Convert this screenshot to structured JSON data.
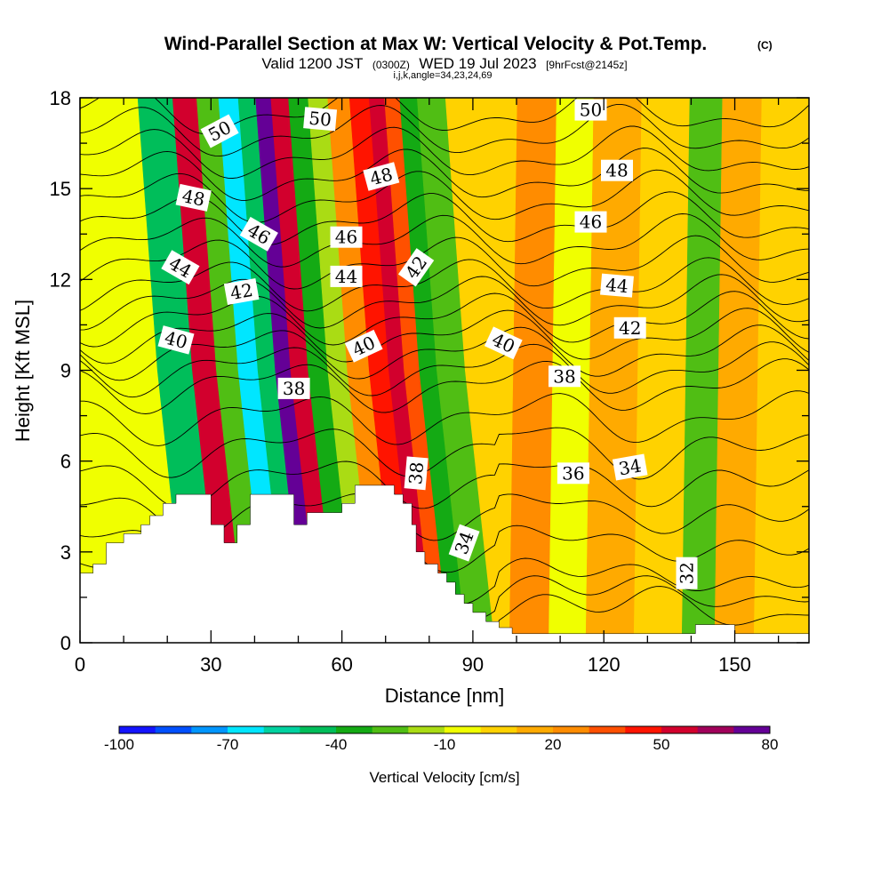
{
  "title": "Wind-Parallel Section at Max W: Vertical Velocity & Pot.Temp.",
  "copyright": "(C)",
  "subtitle": {
    "part1": "Valid 1200 JST",
    "part2": "(0300Z)",
    "part3": "WED 19 Jul 2023",
    "part4": "[9hrFcst@2145z]"
  },
  "info": "i,j,k,angle=34,23,24,69",
  "chart_data": {
    "type": "heatmap",
    "xlabel": "Distance [nm]",
    "ylabel": "Height [Kft MSL]",
    "xlim": [
      0,
      167
    ],
    "ylim": [
      0,
      18
    ],
    "x_ticks": [
      0,
      30,
      60,
      90,
      120,
      150
    ],
    "y_ticks": [
      0,
      3,
      6,
      9,
      12,
      15,
      18
    ],
    "colorbar": {
      "label": "Vertical Velocity [cm/s]",
      "tick_labels": [
        "-100",
        "-70",
        "-40",
        "-10",
        "20",
        "50",
        "80"
      ],
      "tick_values": [
        -100,
        -70,
        -40,
        -10,
        20,
        50,
        80
      ],
      "range": [
        -100,
        80
      ],
      "colors": [
        "#1414ff",
        "#0050ff",
        "#0096ff",
        "#00e6ff",
        "#00d2a0",
        "#00be5a",
        "#14aa14",
        "#50be14",
        "#aadc14",
        "#f0ff00",
        "#ffd200",
        "#ffaa00",
        "#ff8c00",
        "#ff5000",
        "#ff1400",
        "#d2002d",
        "#a0005a",
        "#640096"
      ]
    },
    "shading_bands": [
      {
        "x": 15,
        "w": -6
      },
      {
        "x": 25,
        "w": -45
      },
      {
        "x": 31,
        "w": 55
      },
      {
        "x": 36,
        "w": -30
      },
      {
        "x": 41,
        "w": -70
      },
      {
        "x": 45,
        "w": -50
      },
      {
        "x": 49,
        "w": 80
      },
      {
        "x": 52,
        "w": 50
      },
      {
        "x": 57,
        "w": -40
      },
      {
        "x": 61,
        "w": -20
      },
      {
        "x": 66,
        "w": 20
      },
      {
        "x": 71,
        "w": 40
      },
      {
        "x": 75,
        "w": 55
      },
      {
        "x": 78,
        "w": 30
      },
      {
        "x": 82,
        "w": -40
      },
      {
        "x": 86,
        "w": -30
      },
      {
        "x": 95,
        "w": 5
      },
      {
        "x": 103,
        "w": 25
      },
      {
        "x": 113,
        "w": -10
      },
      {
        "x": 120,
        "w": 10
      },
      {
        "x": 135,
        "w": 5
      },
      {
        "x": 142,
        "w": -25
      },
      {
        "x": 150,
        "w": 10
      },
      {
        "x": 160,
        "w": 0
      }
    ],
    "terrain": [
      [
        0,
        2.3
      ],
      [
        3,
        2.6
      ],
      [
        6,
        3.3
      ],
      [
        10,
        3.6
      ],
      [
        14,
        3.9
      ],
      [
        16,
        4.2
      ],
      [
        19,
        4.6
      ],
      [
        22,
        4.9
      ],
      [
        29,
        4.9
      ],
      [
        30,
        3.9
      ],
      [
        32,
        3.9
      ],
      [
        33,
        3.3
      ],
      [
        35,
        3.3
      ],
      [
        36,
        3.9
      ],
      [
        39,
        4.9
      ],
      [
        48,
        4.9
      ],
      [
        49,
        3.9
      ],
      [
        51,
        3.9
      ],
      [
        52,
        4.3
      ],
      [
        58,
        4.3
      ],
      [
        60,
        4.6
      ],
      [
        62,
        4.6
      ],
      [
        63,
        5.2
      ],
      [
        71,
        5.2
      ],
      [
        72,
        4.9
      ],
      [
        74,
        4.6
      ],
      [
        76,
        3.9
      ],
      [
        77,
        3.0
      ],
      [
        79,
        2.6
      ],
      [
        82,
        2.3
      ],
      [
        84,
        2.0
      ],
      [
        86,
        1.6
      ],
      [
        88,
        1.3
      ],
      [
        90,
        1.0
      ],
      [
        93,
        0.7
      ],
      [
        96,
        0.5
      ],
      [
        99,
        0.3
      ],
      [
        140,
        0.3
      ],
      [
        141,
        0.6
      ],
      [
        149,
        0.6
      ],
      [
        150,
        0.3
      ],
      [
        167,
        0.3
      ]
    ],
    "theta_contours": [
      30,
      31,
      32,
      33,
      34,
      35,
      36,
      37,
      38,
      39,
      40,
      41,
      42,
      43,
      44,
      45,
      46,
      47,
      48,
      49,
      50,
      51,
      52
    ],
    "contour_labels": [
      {
        "text": "50",
        "x": 32,
        "y": 16.9,
        "angle": -28
      },
      {
        "text": "50",
        "x": 55,
        "y": 17.3,
        "angle": 5
      },
      {
        "text": "50",
        "x": 117,
        "y": 17.6,
        "angle": 0
      },
      {
        "text": "48",
        "x": 26,
        "y": 14.7,
        "angle": 12
      },
      {
        "text": "48",
        "x": 69,
        "y": 15.4,
        "angle": -15
      },
      {
        "text": "48",
        "x": 123,
        "y": 15.6,
        "angle": 0
      },
      {
        "text": "46",
        "x": 41,
        "y": 13.5,
        "angle": 30
      },
      {
        "text": "46",
        "x": 61,
        "y": 13.4,
        "angle": 0
      },
      {
        "text": "46",
        "x": 117,
        "y": 13.9,
        "angle": 0
      },
      {
        "text": "44",
        "x": 23,
        "y": 12.4,
        "angle": 30
      },
      {
        "text": "44",
        "x": 61,
        "y": 12.1,
        "angle": 0
      },
      {
        "text": "44",
        "x": 123,
        "y": 11.8,
        "angle": 5
      },
      {
        "text": "42",
        "x": 37,
        "y": 11.6,
        "angle": -10
      },
      {
        "text": "42",
        "x": 77,
        "y": 12.4,
        "angle": -55
      },
      {
        "text": "42",
        "x": 126,
        "y": 10.4,
        "angle": 0
      },
      {
        "text": "40",
        "x": 22,
        "y": 10.0,
        "angle": 15
      },
      {
        "text": "40",
        "x": 65,
        "y": 9.8,
        "angle": -25
      },
      {
        "text": "40",
        "x": 97,
        "y": 9.9,
        "angle": 25
      },
      {
        "text": "38",
        "x": 49,
        "y": 8.4,
        "angle": 0
      },
      {
        "text": "38",
        "x": 111,
        "y": 8.8,
        "angle": 0
      },
      {
        "text": "38",
        "x": 77,
        "y": 5.6,
        "angle": -85
      },
      {
        "text": "36",
        "x": 113,
        "y": 5.6,
        "angle": 0
      },
      {
        "text": "34",
        "x": 126,
        "y": 5.8,
        "angle": -10
      },
      {
        "text": "34",
        "x": 88,
        "y": 3.3,
        "angle": -70
      },
      {
        "text": "32",
        "x": 139,
        "y": 2.3,
        "angle": -90
      }
    ]
  }
}
